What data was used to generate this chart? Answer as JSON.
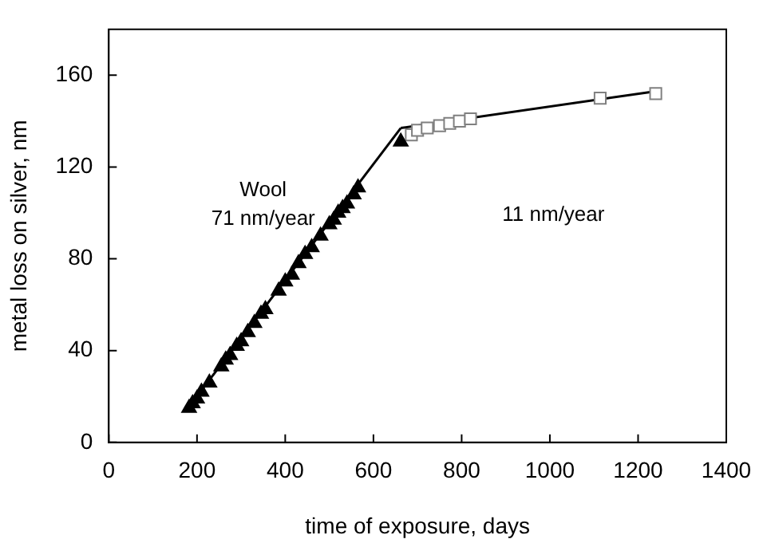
{
  "chart_data": {
    "type": "scatter",
    "xlabel": "time of exposure, days",
    "ylabel": "metal loss on silver, nm",
    "xlim": [
      0,
      1400
    ],
    "xticks": [
      0,
      200,
      400,
      600,
      800,
      1000,
      1200,
      1400
    ],
    "ylim": [
      0,
      180
    ],
    "yticks": [
      0,
      40,
      80,
      120,
      160
    ],
    "grid": false,
    "legend": false,
    "series": [
      {
        "marker": "triangle",
        "color": "#000000",
        "x": [
          182,
          190,
          200,
          210,
          228,
          255,
          265,
          275,
          290,
          300,
          315,
          330,
          345,
          355,
          385,
          400,
          415,
          430,
          445,
          460,
          480,
          500,
          510,
          520,
          530,
          540,
          555,
          565,
          662
        ],
        "values": [
          15,
          17,
          19,
          22,
          26,
          33,
          36,
          38,
          42,
          44,
          48,
          52,
          56,
          58,
          66,
          70,
          73,
          78,
          82,
          85,
          90,
          95,
          97,
          100,
          102,
          104,
          108,
          111,
          131
        ]
      },
      {
        "marker": "square",
        "color": "#808080",
        "x": [
          686,
          700,
          722,
          750,
          773,
          795,
          820,
          1114,
          1240
        ],
        "values": [
          134,
          136,
          137,
          138,
          139,
          140,
          141,
          150,
          152
        ]
      },
      {
        "type": "line",
        "marker": "none",
        "color": "#000000",
        "x": [
          176,
          662
        ],
        "values": [
          14,
          137
        ]
      },
      {
        "type": "line",
        "marker": "none",
        "color": "#000000",
        "x": [
          662,
          1240
        ],
        "values": [
          137,
          153
        ]
      }
    ],
    "annotations": [
      "Wool",
      "71 nm/year",
      "11 nm/year"
    ]
  }
}
